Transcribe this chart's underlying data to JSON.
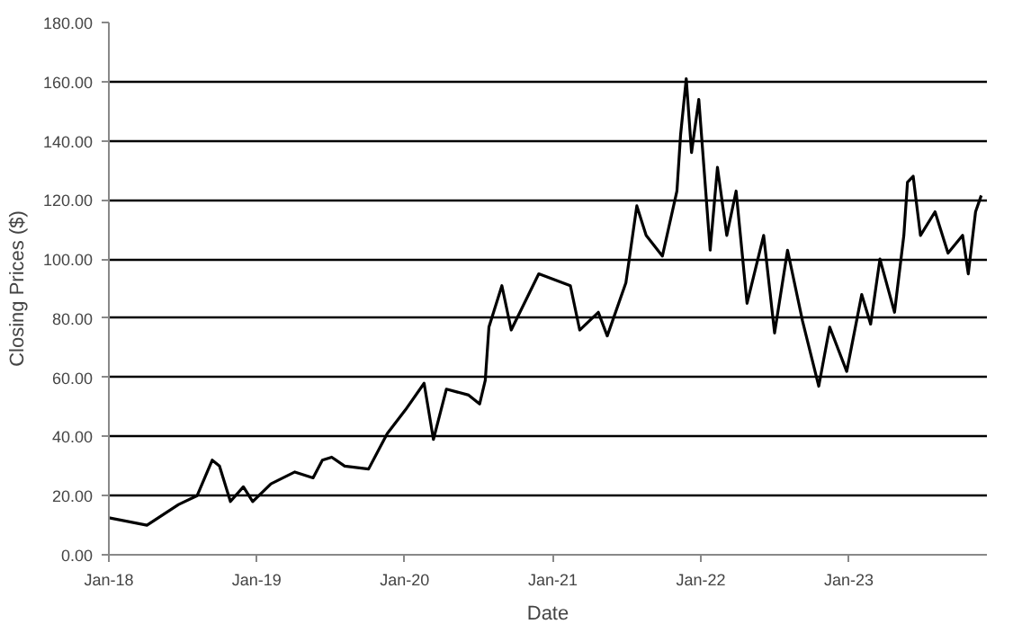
{
  "chart_data": {
    "type": "line",
    "xlabel": "Date",
    "ylabel": "Closing Prices ($)",
    "x": [
      "2018-01-01",
      "2018-04-05",
      "2018-06-22",
      "2018-08-07",
      "2018-09-13",
      "2018-10-01",
      "2018-10-28",
      "2018-11-29",
      "2018-12-22",
      "2019-02-05",
      "2019-04-05",
      "2019-05-20",
      "2019-06-12",
      "2019-07-05",
      "2019-08-06",
      "2019-10-04",
      "2019-11-19",
      "2020-01-03",
      "2020-02-18",
      "2020-03-12",
      "2020-04-13",
      "2020-06-07",
      "2020-07-04",
      "2020-07-18",
      "2020-07-27",
      "2020-08-28",
      "2020-09-20",
      "2020-11-27",
      "2021-02-13",
      "2021-03-08",
      "2021-04-23",
      "2021-05-15",
      "2021-06-30",
      "2021-07-27",
      "2021-08-19",
      "2021-09-28",
      "2021-11-03",
      "2021-11-12",
      "2021-11-26",
      "2021-12-09",
      "2021-12-27",
      "2022-01-24",
      "2022-02-11",
      "2022-03-06",
      "2022-03-29",
      "2022-04-25",
      "2022-06-05",
      "2022-07-02",
      "2022-08-03",
      "2022-09-09",
      "2022-10-19",
      "2022-11-15",
      "2022-12-27",
      "2023-02-02",
      "2023-02-24",
      "2023-03-19",
      "2023-04-24",
      "2023-05-17",
      "2023-05-26",
      "2023-06-09",
      "2023-06-27",
      "2023-08-02",
      "2023-09-03",
      "2023-10-09",
      "2023-10-23",
      "2023-11-10",
      "2023-11-24"
    ],
    "series": [
      {
        "color": "#000000",
        "values": [
          12.5,
          10,
          17,
          20,
          32,
          30,
          18,
          23,
          18,
          24,
          28,
          26,
          32,
          33,
          30,
          29,
          41,
          49,
          58,
          39,
          56,
          54,
          51,
          59,
          77,
          91,
          76,
          95,
          91,
          76,
          82,
          74,
          92,
          118,
          108,
          101,
          123,
          142,
          161,
          136,
          154,
          103,
          131,
          108,
          123,
          85,
          108,
          75,
          103,
          79,
          57,
          77,
          62,
          88,
          78,
          100,
          82,
          108,
          126,
          128,
          108,
          116,
          102,
          108,
          95,
          116,
          121.5
        ]
      }
    ],
    "xlim": [
      "2018-01-01",
      "2023-12-08"
    ],
    "xticks": [
      {
        "value": "2018-01-01",
        "label": "Jan-18"
      },
      {
        "value": "2019-01-01",
        "label": "Jan-19"
      },
      {
        "value": "2020-01-01",
        "label": "Jan-20"
      },
      {
        "value": "2021-01-01",
        "label": "Jan-21"
      },
      {
        "value": "2022-01-01",
        "label": "Jan-22"
      },
      {
        "value": "2023-01-01",
        "label": "Jan-23"
      }
    ],
    "ylim": [
      0,
      180
    ],
    "yticks": [
      {
        "value": 0,
        "label": "0.00"
      },
      {
        "value": 20,
        "label": "20.00"
      },
      {
        "value": 40,
        "label": "40.00"
      },
      {
        "value": 60,
        "label": "60.00"
      },
      {
        "value": 80,
        "label": "80.00"
      },
      {
        "value": 100,
        "label": "100.00"
      },
      {
        "value": 120,
        "label": "120.00"
      },
      {
        "value": 140,
        "label": "140.00"
      },
      {
        "value": 160,
        "label": "160.00"
      },
      {
        "value": 180,
        "label": "180.00"
      }
    ],
    "grid": "y",
    "line_style": "solid"
  }
}
